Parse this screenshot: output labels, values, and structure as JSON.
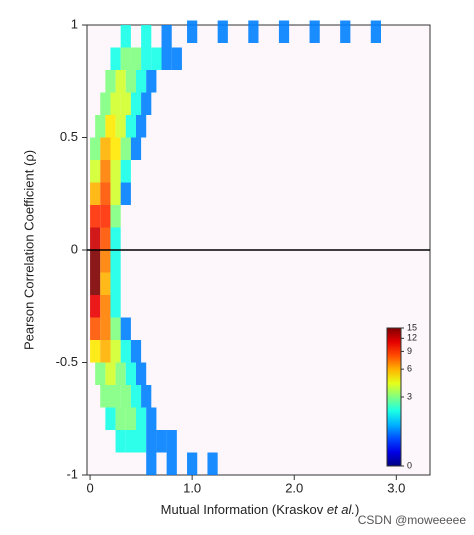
{
  "chart_data": {
    "type": "scatter",
    "xlabel": [
      "Mutual Information (Kraskov ",
      "et al.",
      ")"
    ],
    "ylabel": "Pearson Correlation Coefficient (ρ)",
    "watermark": "CSDN @moweeeee",
    "xlim": [
      -0.03,
      3.33
    ],
    "ylim": [
      -1,
      1
    ],
    "xticks": [
      0,
      {
        "value": 1,
        "label": "1.0"
      },
      {
        "value": 2,
        "label": "2.0"
      },
      {
        "value": 3,
        "label": "3.0"
      }
    ],
    "yticks": [
      -1,
      {
        "value": -0.5,
        "label": "-0.5"
      },
      0,
      {
        "value": 0.5,
        "label": "0.5"
      },
      1
    ],
    "zero_line": true,
    "colorbar": {
      "lim": [
        0,
        15
      ],
      "ticks": [
        0,
        3,
        6,
        9,
        12,
        15
      ],
      "scale": "log1p",
      "colormap": "jet"
    },
    "x": [
      0.35,
      0.55,
      0.75,
      1.0,
      1.3,
      1.6,
      1.9,
      2.2,
      2.5,
      2.8,
      0.25,
      0.35,
      0.45,
      0.55,
      0.65,
      0.75,
      0.85,
      0.2,
      0.3,
      0.4,
      0.5,
      0.6,
      0.15,
      0.25,
      0.35,
      0.45,
      0.55,
      0.1,
      0.2,
      0.3,
      0.4,
      0.5,
      0.05,
      0.15,
      0.25,
      0.35,
      0.45,
      0.05,
      0.15,
      0.25,
      0.35,
      0.05,
      0.15,
      0.25,
      0.35,
      0.05,
      0.15,
      0.25,
      0.05,
      0.15,
      0.25,
      0.05,
      0.15,
      0.25,
      0.05,
      0.15,
      0.25,
      0.05,
      0.15,
      0.25,
      0.05,
      0.15,
      0.25,
      0.35,
      0.05,
      0.15,
      0.25,
      0.35,
      0.45,
      0.1,
      0.2,
      0.3,
      0.4,
      0.5,
      0.15,
      0.25,
      0.35,
      0.45,
      0.55,
      0.2,
      0.3,
      0.4,
      0.5,
      0.6,
      0.3,
      0.4,
      0.5,
      0.6,
      0.7,
      0.8,
      0.6,
      0.8,
      1.0,
      1.2
    ],
    "y": [
      0.95,
      0.95,
      0.95,
      0.97,
      0.97,
      0.97,
      0.97,
      0.97,
      0.97,
      0.97,
      0.85,
      0.85,
      0.85,
      0.85,
      0.85,
      0.85,
      0.85,
      0.75,
      0.75,
      0.75,
      0.75,
      0.75,
      0.65,
      0.65,
      0.65,
      0.65,
      0.65,
      0.55,
      0.55,
      0.55,
      0.55,
      0.55,
      0.45,
      0.45,
      0.45,
      0.45,
      0.45,
      0.35,
      0.35,
      0.35,
      0.35,
      0.25,
      0.25,
      0.25,
      0.25,
      0.15,
      0.15,
      0.15,
      0.05,
      0.05,
      0.05,
      -0.05,
      -0.05,
      -0.05,
      -0.15,
      -0.15,
      -0.15,
      -0.25,
      -0.25,
      -0.25,
      -0.35,
      -0.35,
      -0.35,
      -0.35,
      -0.45,
      -0.45,
      -0.45,
      -0.45,
      -0.45,
      -0.55,
      -0.55,
      -0.55,
      -0.55,
      -0.55,
      -0.65,
      -0.65,
      -0.65,
      -0.65,
      -0.65,
      -0.75,
      -0.75,
      -0.75,
      -0.75,
      -0.75,
      -0.85,
      -0.85,
      -0.85,
      -0.85,
      -0.85,
      -0.85,
      -0.95,
      -0.95,
      -0.95,
      -0.95
    ],
    "density": [
      2,
      2,
      1,
      1,
      1,
      1,
      1,
      1,
      1,
      1,
      2,
      3,
      3,
      2,
      2,
      1,
      1,
      3,
      4,
      3,
      2,
      1,
      3,
      4,
      4,
      2,
      1,
      3,
      5,
      4,
      2,
      1,
      3,
      6,
      5,
      3,
      1,
      4,
      7,
      4,
      2,
      6,
      8,
      4,
      1,
      9,
      9,
      3,
      12,
      8,
      2,
      15,
      7,
      2,
      15,
      6,
      2,
      11,
      7,
      2,
      8,
      7,
      3,
      1,
      5,
      6,
      4,
      2,
      1,
      3,
      4,
      3,
      2,
      1,
      3,
      3,
      3,
      2,
      1,
      2,
      3,
      3,
      2,
      1,
      2,
      2,
      2,
      1,
      1,
      1,
      1,
      1,
      1,
      1
    ]
  }
}
